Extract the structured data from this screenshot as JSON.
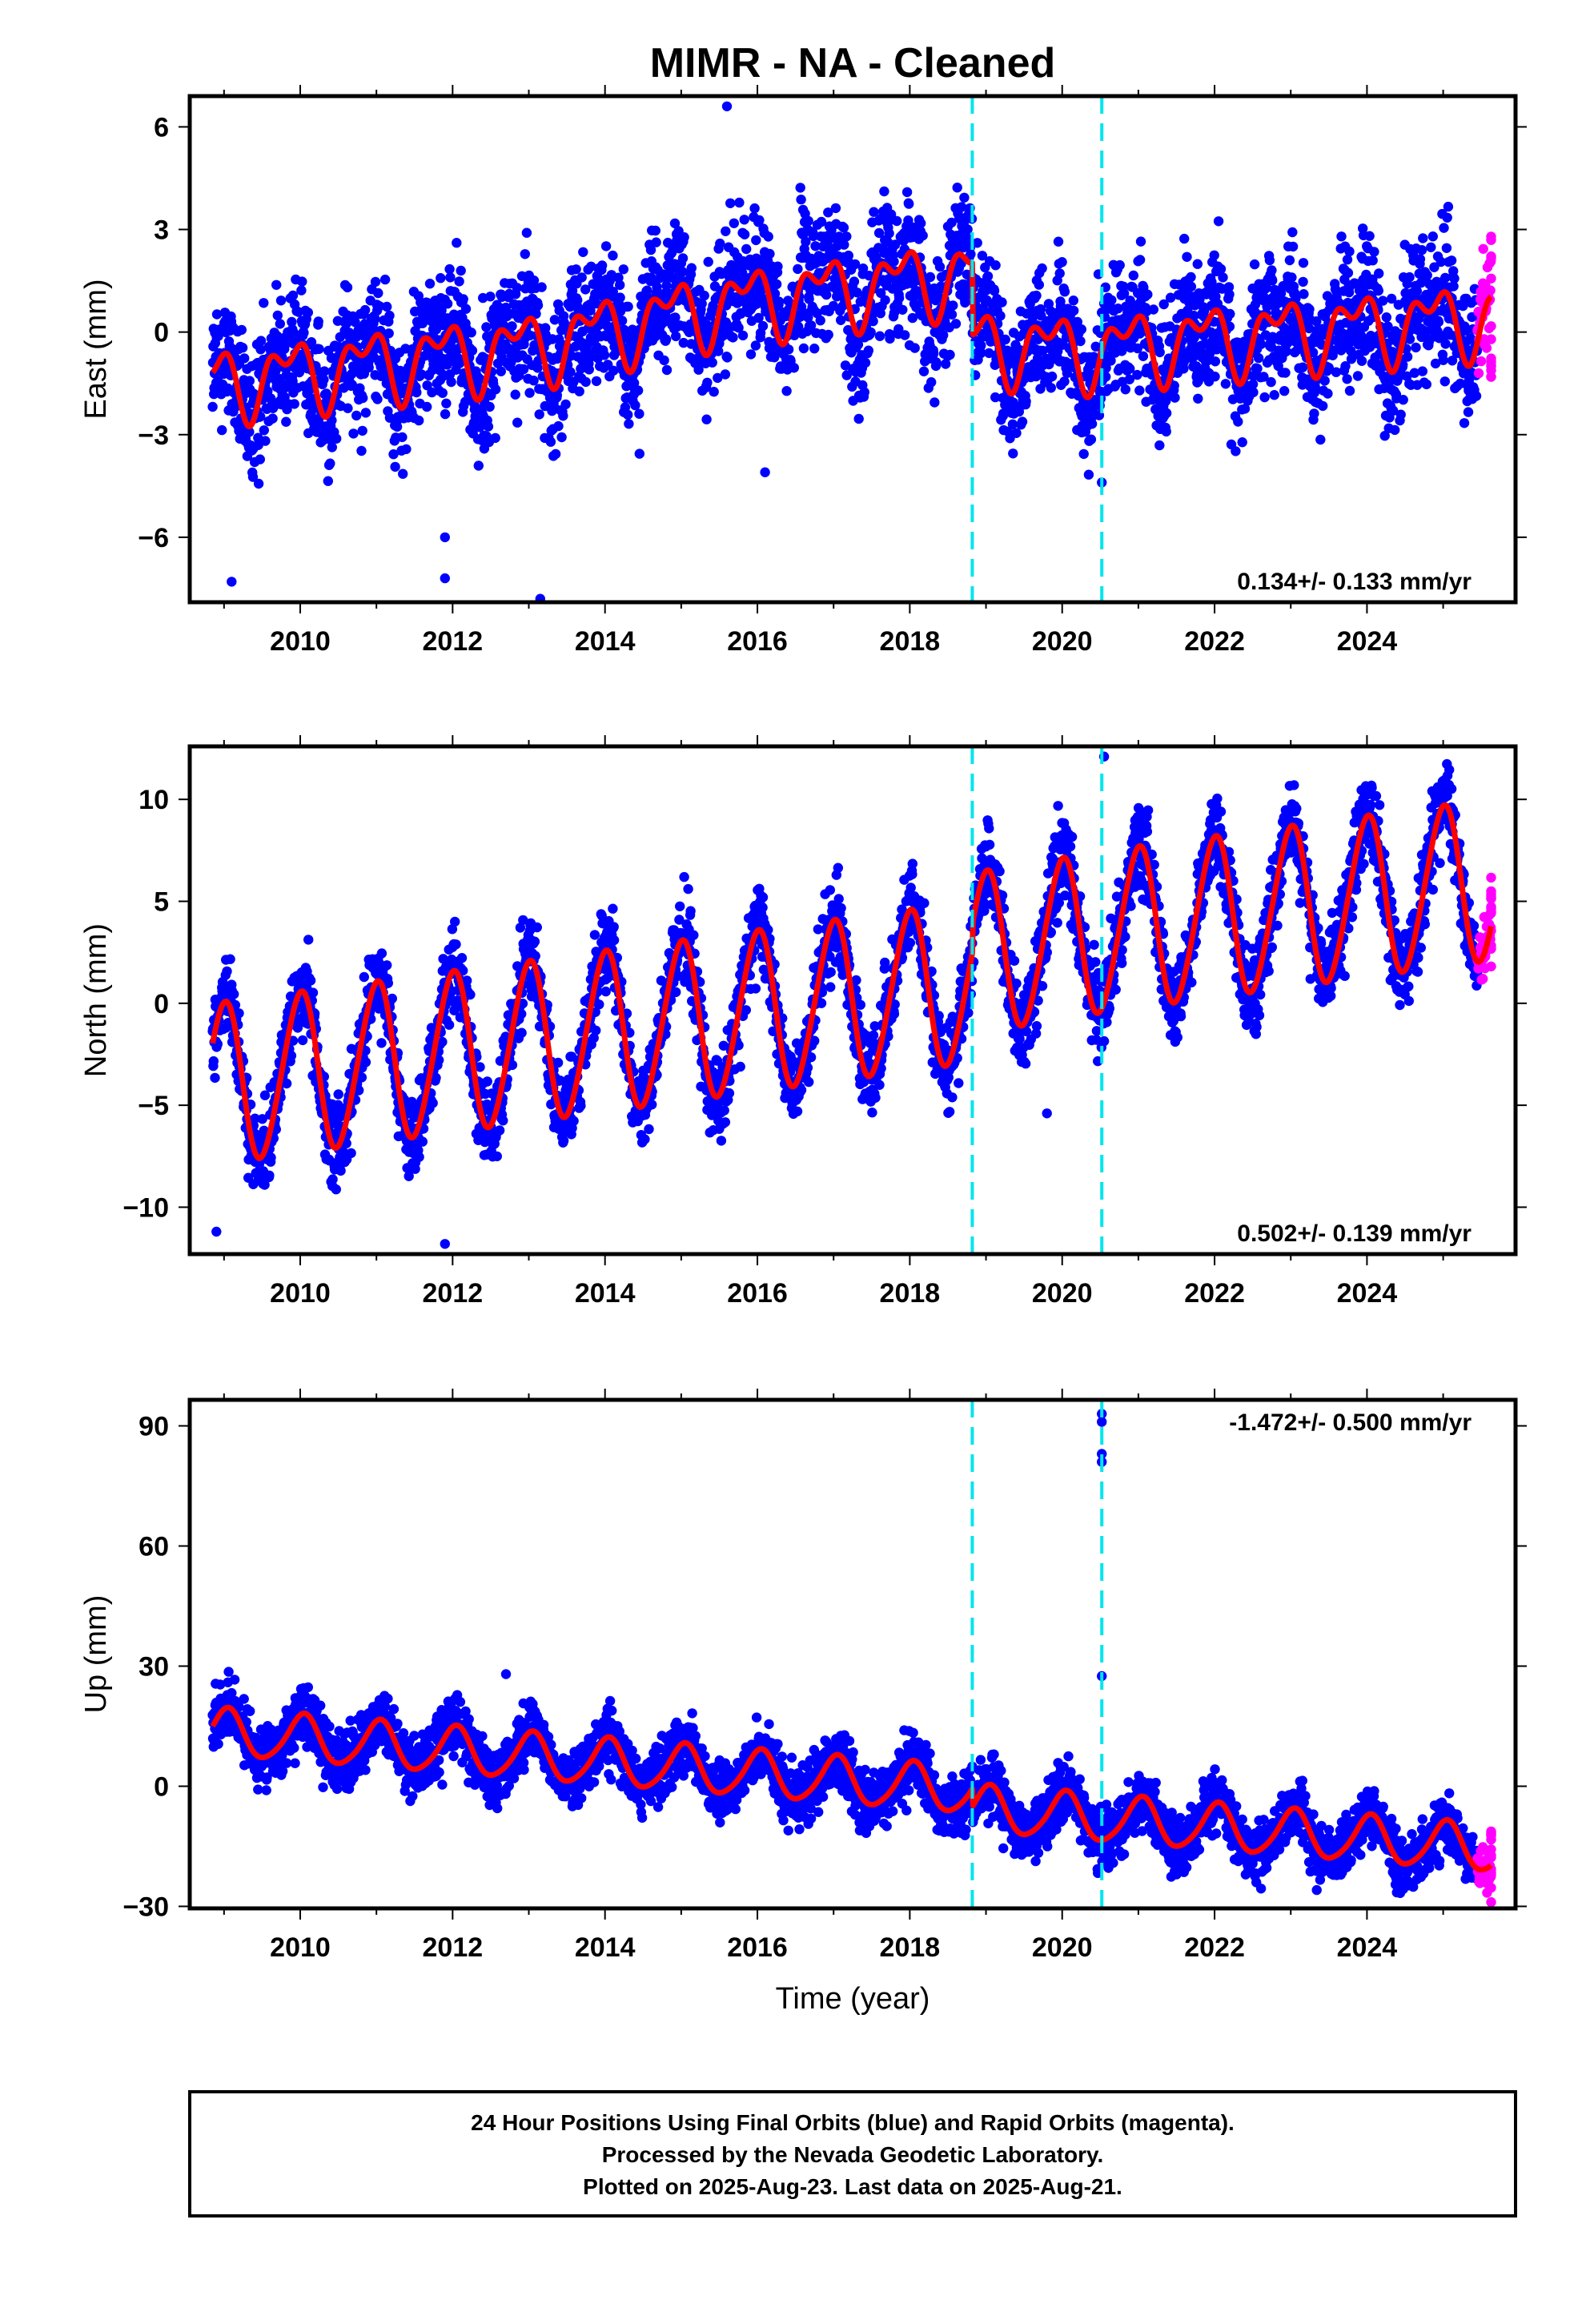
{
  "chart_data": {
    "title": "MIMR  - NA - Cleaned",
    "type": "scatter",
    "xlabel": "Time (year)",
    "xlim": [
      2008.55,
      2025.95
    ],
    "x_ticks": [
      2010,
      2012,
      2014,
      2016,
      2018,
      2020,
      2022,
      2024
    ],
    "steps": [
      2018.82,
      2020.52
    ],
    "colors": {
      "final_orbits": "#0000ff",
      "rapid_orbits": "#ff00ff",
      "model": "#ff0000",
      "steps": "#00e5ee"
    },
    "start_year": 2008.85,
    "rapid_start": 2025.45,
    "end_year": 2025.63,
    "panels": [
      {
        "name": "east",
        "ylabel": "East (mm)",
        "ylim": [
          -7.9,
          6.9
        ],
        "y_ticks": [
          6,
          3,
          0,
          -3,
          -6
        ],
        "rate_text": "0.134+/- 0.133 mm/yr",
        "model": {
          "intercept": -1.5,
          "slope": 0.134,
          "amp1": 0.85,
          "phase1": 2.5,
          "amp2": 0.55,
          "phase2": 0.6,
          "secular": [
            [
              2008.85,
              0.0
            ],
            [
              2011,
              0.3
            ],
            [
              2013,
              0.5
            ],
            [
              2015.5,
              1.4
            ],
            [
              2017.5,
              1.7
            ],
            [
              2018.82,
              1.9
            ],
            [
              2018.83,
              -0.2
            ],
            [
              2020.5,
              -0.6
            ],
            [
              2021,
              -0.5
            ],
            [
              2025.63,
              -0.3
            ]
          ],
          "noise": 1.1
        },
        "outliers": [
          [
            2009.1,
            -7.3
          ],
          [
            2011.9,
            -6.0
          ],
          [
            2011.9,
            -7.2
          ],
          [
            2013.15,
            -7.8
          ],
          [
            2015.6,
            6.6
          ],
          [
            2020.52,
            -4.4
          ],
          [
            2016.1,
            -4.1
          ]
        ]
      },
      {
        "name": "north",
        "ylabel": "North (mm)",
        "ylim": [
          -12.3,
          12.6
        ],
        "y_ticks": [
          10,
          5,
          0,
          -5,
          -10
        ],
        "rate_text": "0.502+/- 0.139 mm/yr",
        "model": {
          "intercept": -4.0,
          "slope": 0.502,
          "amp1": 3.9,
          "phase1": 1.6,
          "amp2": 0.35,
          "phase2": 0.2,
          "secular": [
            [
              2008.85,
              0.0
            ],
            [
              2018.82,
              0.0
            ],
            [
              2018.83,
              1.4
            ],
            [
              2020.52,
              1.6
            ],
            [
              2025.63,
              1.6
            ]
          ],
          "noise": 1.2
        },
        "outliers": [
          [
            2008.9,
            -11.2
          ],
          [
            2011.9,
            -11.8
          ],
          [
            2019.8,
            -5.4
          ],
          [
            2020.55,
            12.1
          ]
        ]
      },
      {
        "name": "up",
        "ylabel": "Up (mm)",
        "ylim": [
          -30.5,
          96.5
        ],
        "y_ticks": [
          90,
          60,
          30,
          0,
          -30
        ],
        "rate_text": "-1.472+/- 0.500 mm/yr",
        "model": {
          "intercept": 13.5,
          "slope": -1.472,
          "amp1": 5.8,
          "phase1": 1.35,
          "amp2": 0.8,
          "phase2": 0.4,
          "secular": [
            [
              2008.85,
              0.0
            ],
            [
              2018.82,
              0.0
            ],
            [
              2018.83,
              -4.5
            ],
            [
              2025.63,
              -4.5
            ]
          ],
          "noise": 4.2
        },
        "outliers": [
          [
            2020.52,
            93.0
          ],
          [
            2020.52,
            91.0
          ],
          [
            2020.52,
            83.0
          ],
          [
            2020.52,
            81.0
          ],
          [
            2020.52,
            27.5
          ],
          [
            2012.7,
            28.0
          ]
        ]
      }
    ]
  },
  "footer": {
    "line1": "24 Hour Positions Using Final Orbits (blue) and Rapid Orbits (magenta).",
    "line2": "Processed by the Nevada Geodetic Laboratory.",
    "line3": "Plotted on 2025-Aug-23. Last data on 2025-Aug-21."
  }
}
